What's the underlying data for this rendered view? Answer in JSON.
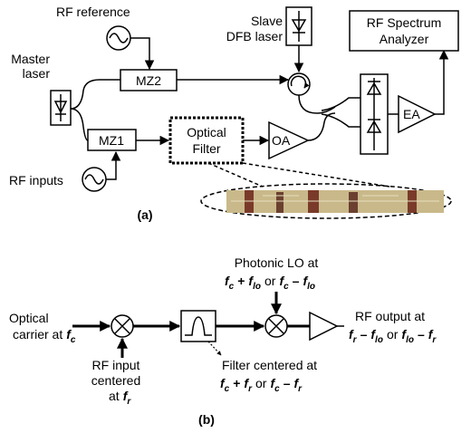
{
  "part_a": {
    "rf_reference": "RF reference",
    "slave_laser": [
      "Slave",
      "DFB laser"
    ],
    "spectrum_analyzer": [
      "RF Spectrum",
      "Analyzer"
    ],
    "master_laser": [
      "Master",
      "laser"
    ],
    "mz2": "MZ2",
    "mz1": "MZ1",
    "optical_filter": [
      "Optical",
      "Filter"
    ],
    "oa": "OA",
    "ea": "EA",
    "rf_inputs": "RF inputs",
    "caption": "(a)"
  },
  "part_b": {
    "optical_carrier": [
      "Optical",
      "carrier at",
      "f",
      "c"
    ],
    "rf_input": [
      "RF input",
      "centered",
      "at",
      "f",
      "r"
    ],
    "filter_centered": [
      "Filter centered at",
      "f",
      "c",
      "+",
      "f",
      "r",
      "or",
      "f",
      "c",
      "–",
      "f",
      "r"
    ],
    "photonic_lo": [
      "Photonic LO at",
      "f",
      "c",
      "+",
      "f",
      "lo",
      "or",
      "f",
      "c",
      "–",
      "f",
      "lo"
    ],
    "rf_output": [
      "RF output at",
      "f",
      "r",
      "–",
      "f",
      "lo",
      "or",
      "f",
      "lo",
      "–",
      "f",
      "r"
    ],
    "caption": "(b)"
  }
}
